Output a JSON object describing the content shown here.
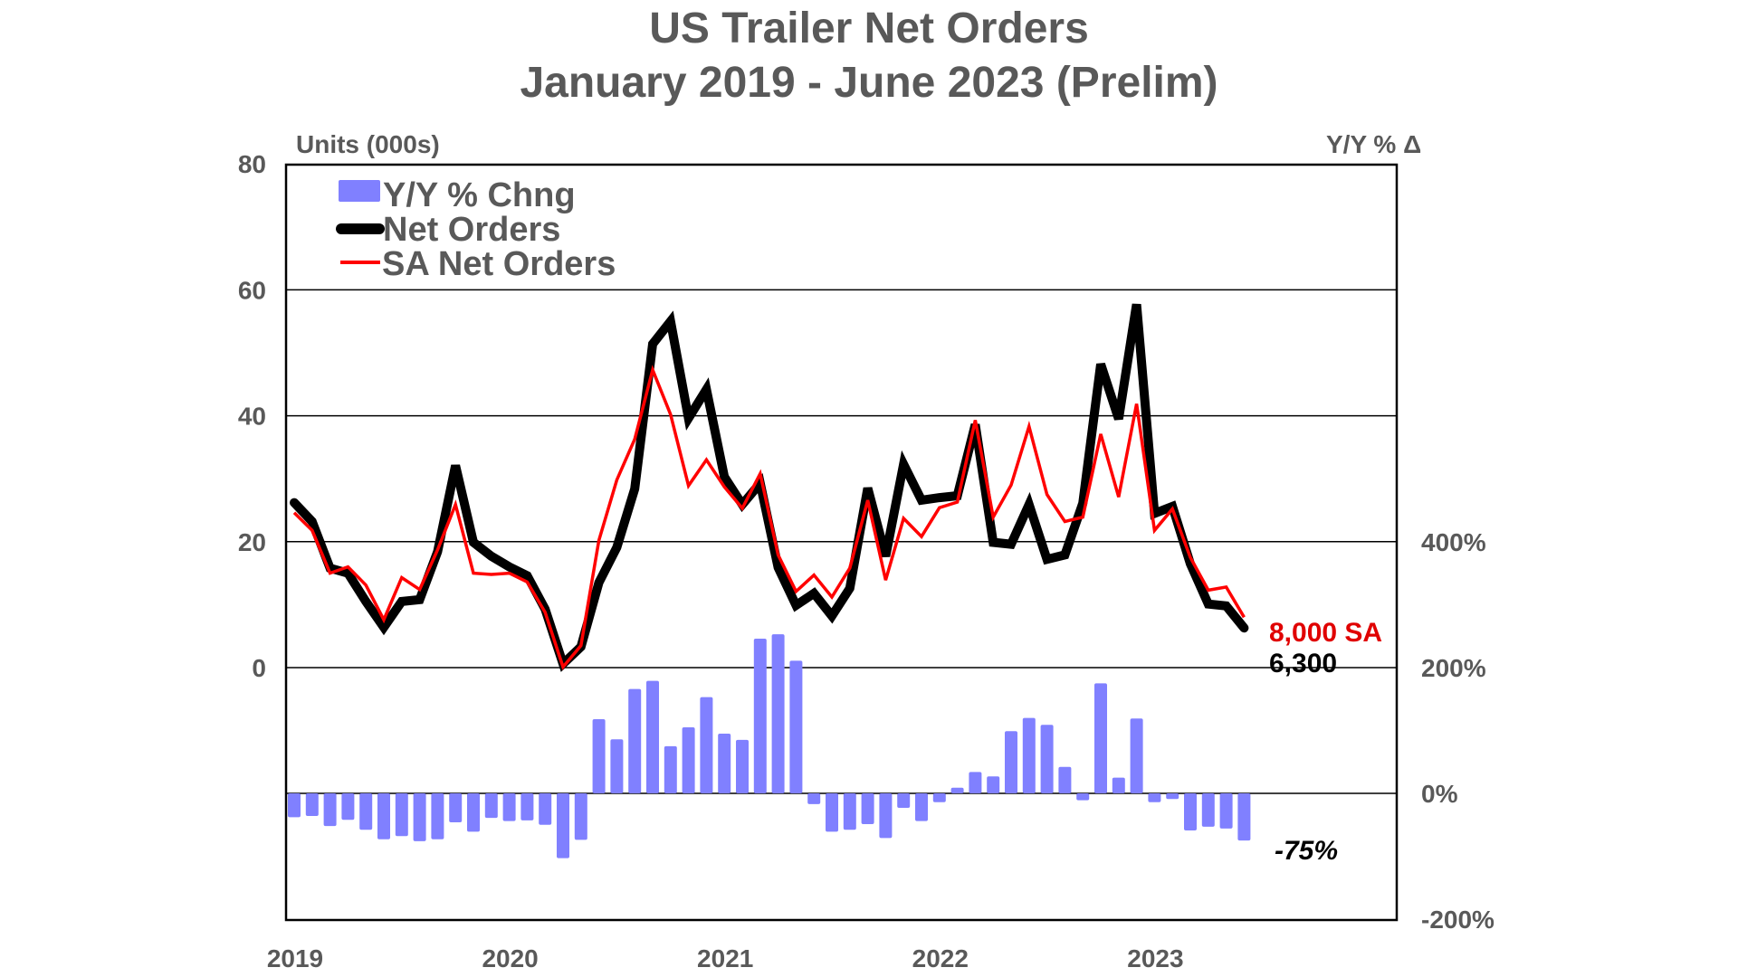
{
  "title_line1": "US Trailer Net Orders",
  "title_line2": "January 2019 - June 2023 (Prelim)",
  "left_axis_title": "Units (000s)",
  "right_axis_title": "Y/Y % Δ",
  "left_ticks": [
    "0",
    "20",
    "40",
    "60",
    "80"
  ],
  "right_ticks": [
    "-200%",
    "0%",
    "200%",
    "400%"
  ],
  "x_ticks": [
    "2019",
    "2020",
    "2021",
    "2022",
    "2023"
  ],
  "legend": {
    "yoy": "Y/Y % Chng",
    "net": " Net Orders",
    "sa": "SA Net Orders"
  },
  "annotations": {
    "sa_last": "8,000 SA",
    "net_last": "6,300",
    "yoy_last": "-75%"
  },
  "colors": {
    "bar": "#8080FF",
    "net": "#000000",
    "sa": "#FF0000",
    "text": "#595959",
    "grid": "#000000"
  },
  "chart_data": {
    "type": "line+bar",
    "title": "US Trailer Net Orders — January 2019 - June 2023 (Prelim)",
    "xlabel": "",
    "ylabel": "Units (000s)",
    "y2label": "Y/Y % Δ",
    "ylim": [
      0,
      80
    ],
    "y2lim": [
      -200,
      400
    ],
    "grid": true,
    "legend_position": "top-left inside",
    "categories": [
      "Jan 2019",
      "Feb 2019",
      "Mar 2019",
      "Apr 2019",
      "May 2019",
      "Jun 2019",
      "Jul 2019",
      "Aug 2019",
      "Sep 2019",
      "Oct 2019",
      "Nov 2019",
      "Dec 2019",
      "Jan 2020",
      "Feb 2020",
      "Mar 2020",
      "Apr 2020",
      "May 2020",
      "Jun 2020",
      "Jul 2020",
      "Aug 2020",
      "Sep 2020",
      "Oct 2020",
      "Nov 2020",
      "Dec 2020",
      "Jan 2021",
      "Feb 2021",
      "Mar 2021",
      "Apr 2021",
      "May 2021",
      "Jun 2021",
      "Jul 2021",
      "Aug 2021",
      "Sep 2021",
      "Oct 2021",
      "Nov 2021",
      "Dec 2021",
      "Jan 2022",
      "Feb 2022",
      "Mar 2022",
      "Apr 2022",
      "May 2022",
      "Jun 2022",
      "Jul 2022",
      "Aug 2022",
      "Sep 2022",
      "Oct 2022",
      "Nov 2022",
      "Dec 2022",
      "Jan 2023",
      "Feb 2023",
      "Mar 2023",
      "Apr 2023",
      "May 2023",
      "Jun 2023"
    ],
    "series": [
      {
        "name": "Net Orders",
        "axis": "left",
        "type": "line",
        "values": [
          26.2,
          23.2,
          15.8,
          15.0,
          10.5,
          6.4,
          10.5,
          10.8,
          18.4,
          32.1,
          19.9,
          17.7,
          16.0,
          14.6,
          9.3,
          0.6,
          3.3,
          13.5,
          19.1,
          28.4,
          51.4,
          55.0,
          39.6,
          44.2,
          30.3,
          25.9,
          29.3,
          15.9,
          9.9,
          11.8,
          8.2,
          12.6,
          28.5,
          17.7,
          32.3,
          26.6,
          27.0,
          27.3,
          38.6,
          19.9,
          19.6,
          25.9,
          17.2,
          17.9,
          26.1,
          48.2,
          39.5,
          57.7,
          24.5,
          25.6,
          16.5,
          10.1,
          9.8,
          6.3
        ]
      },
      {
        "name": "SA Net Orders",
        "axis": "left",
        "type": "line",
        "values": [
          24.6,
          21.8,
          15.0,
          16.0,
          13.1,
          7.6,
          14.3,
          12.4,
          18.7,
          25.9,
          15.0,
          14.8,
          15.0,
          13.6,
          8.8,
          0.1,
          3.5,
          20.2,
          29.8,
          36.3,
          47.3,
          40.2,
          28.9,
          33.0,
          28.7,
          25.3,
          30.8,
          17.9,
          12.1,
          14.7,
          11.2,
          15.8,
          26.6,
          13.9,
          23.7,
          20.8,
          25.4,
          26.3,
          39.3,
          23.9,
          29.0,
          38.3,
          27.5,
          23.2,
          23.9,
          37.1,
          27.1,
          41.9,
          21.8,
          25.2,
          17.5,
          12.3,
          12.8,
          8.0
        ]
      },
      {
        "name": "Y/Y % Chng",
        "axis": "right",
        "type": "bar",
        "values": [
          -38,
          -36,
          -52,
          -42,
          -58,
          -73,
          -68,
          -76,
          -73,
          -46,
          -61,
          -39,
          -44,
          -43,
          -50,
          -103,
          -74,
          118,
          86,
          166,
          179,
          75,
          105,
          153,
          95,
          85,
          246,
          253,
          211,
          -17,
          -61,
          -58,
          -49,
          -71,
          -23,
          -44,
          -14,
          9,
          34,
          27,
          99,
          120,
          109,
          42,
          -11,
          175,
          25,
          119,
          -14,
          -9,
          -59,
          -53,
          -56,
          -75
        ]
      }
    ]
  }
}
